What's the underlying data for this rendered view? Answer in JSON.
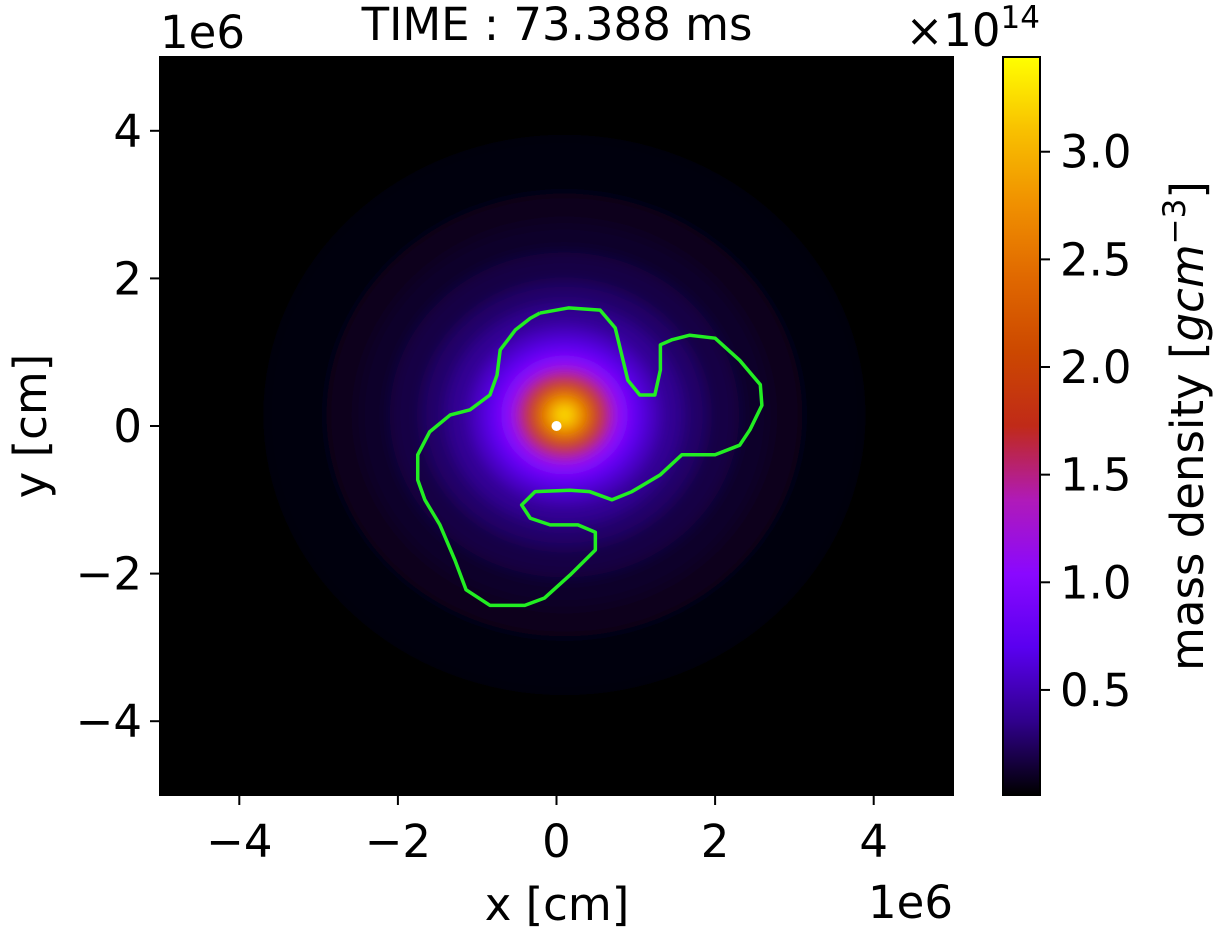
{
  "chart_data": {
    "type": "heatmap",
    "title": "TIME : 73.388 ms",
    "xlabel": "x [cm]",
    "ylabel": "y [cm]",
    "x_offset": "1e6",
    "y_offset": "1e6",
    "xlim": [
      -5,
      5
    ],
    "ylim": [
      -5,
      5
    ],
    "xticks": [
      {
        "value": -4,
        "label": "−4"
      },
      {
        "value": -2,
        "label": "−2"
      },
      0,
      2,
      4
    ],
    "yticks": [
      {
        "value": -4,
        "label": "−4"
      },
      {
        "value": -2,
        "label": "−2"
      },
      0,
      2,
      4
    ],
    "density": {
      "center": [
        0.1,
        0.15
      ],
      "r": [
        3.8,
        3.4,
        3.0,
        2.6,
        2.2,
        1.8,
        1.5,
        1.2,
        1.0,
        0.8,
        0.6,
        0.45,
        0.3,
        0.15,
        0.05
      ],
      "values": [
        0.03,
        0.05,
        0.08,
        0.12,
        0.18,
        0.27,
        0.38,
        0.55,
        0.75,
        1.05,
        1.6,
        2.1,
        2.7,
        3.2,
        3.4
      ]
    },
    "contour": {
      "color": "#22ee22",
      "x": [
        -0.21,
        0.15,
        0.55,
        0.74,
        0.9,
        1.05,
        1.24,
        1.31,
        1.31,
        1.46,
        1.68,
        2.0,
        2.31,
        2.57,
        2.59,
        2.44,
        2.31,
        2.0,
        1.58,
        1.31,
        0.95,
        0.7,
        0.42,
        0.17,
        -0.27,
        -0.44,
        -0.33,
        -0.08,
        0.27,
        0.49,
        0.49,
        0.17,
        -0.15,
        -0.4,
        -0.84,
        -1.14,
        -1.28,
        -1.47,
        -1.66,
        -1.75,
        -1.75,
        -1.6,
        -1.34,
        -1.09,
        -0.84,
        -0.75,
        -0.71,
        -0.52,
        -0.33,
        -0.21
      ],
      "y": [
        1.53,
        1.6,
        1.57,
        1.33,
        0.62,
        0.42,
        0.42,
        0.76,
        1.1,
        1.17,
        1.23,
        1.19,
        0.89,
        0.56,
        0.28,
        -0.05,
        -0.26,
        -0.39,
        -0.39,
        -0.66,
        -0.89,
        -1.0,
        -0.89,
        -0.87,
        -0.89,
        -1.07,
        -1.25,
        -1.34,
        -1.34,
        -1.44,
        -1.68,
        -2.02,
        -2.33,
        -2.43,
        -2.43,
        -2.22,
        -1.82,
        -1.34,
        -1.0,
        -0.73,
        -0.39,
        -0.08,
        0.15,
        0.22,
        0.42,
        0.69,
        1.03,
        1.3,
        1.46,
        1.53
      ]
    },
    "marker": {
      "x": 0,
      "y": 0,
      "color": "#ffffff"
    },
    "colormap": [
      "#000000",
      "#30008c",
      "#5a00f0",
      "#8a08ff",
      "#b01ab8",
      "#c02a18",
      "#cc4800",
      "#e06800",
      "#f09000",
      "#f8c000",
      "#ffff00"
    ],
    "clim": [
      0.012,
      3.44
    ],
    "cticks": [
      0.5,
      {
        "value": 1.0,
        "label": "1.0"
      },
      1.5,
      {
        "value": 2.0,
        "label": "2.0"
      },
      2.5,
      {
        "value": 3.0,
        "label": "3.0"
      }
    ],
    "colorbar_offset": {
      "base": "×10",
      "exponent": "14"
    },
    "colorbar_label": {
      "text": "mass density [",
      "unit": "gcm",
      "exponent": "−3",
      "close": "]"
    }
  }
}
